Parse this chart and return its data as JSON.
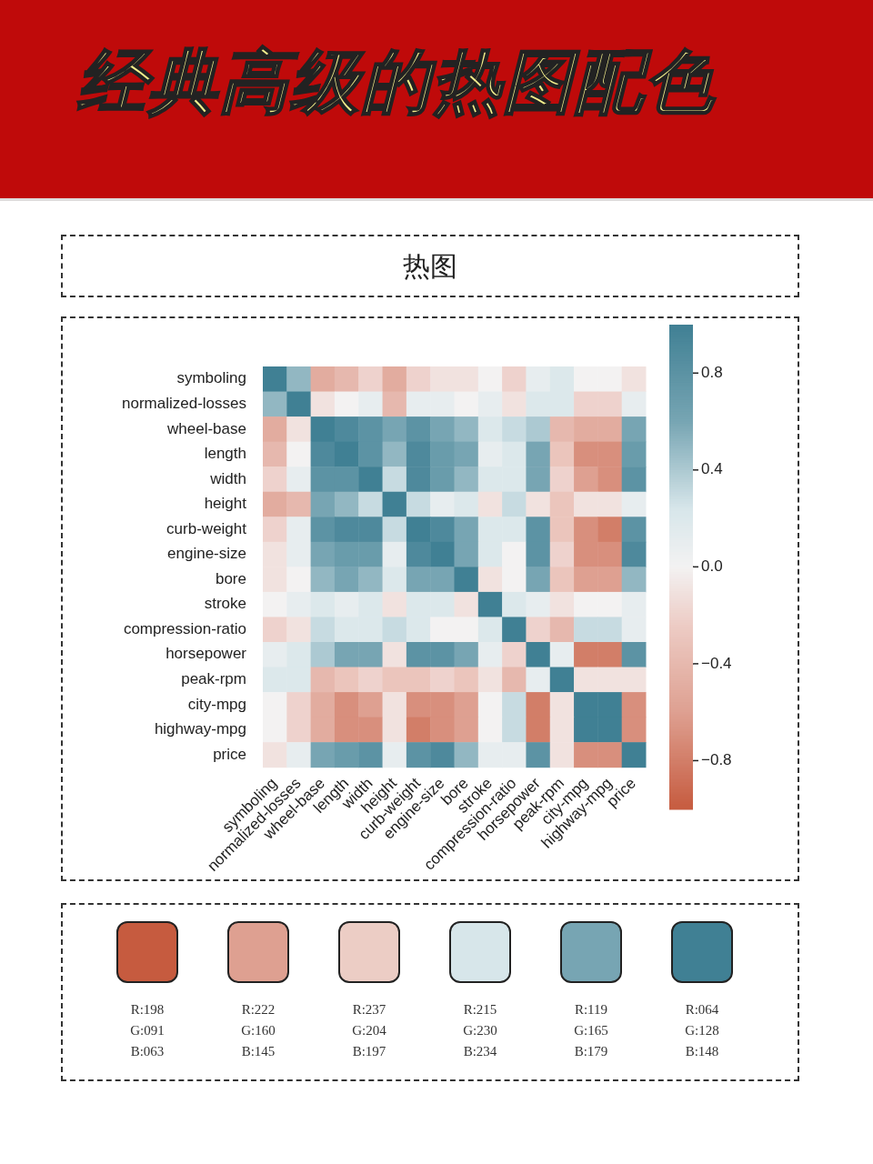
{
  "chart_data": [
    {
      "type": "other",
      "title": "经典高级的热图配色"
    },
    {
      "type": "heatmap",
      "title": "热图",
      "categories": [
        "symboling",
        "normalized-losses",
        "wheel-base",
        "length",
        "width",
        "height",
        "curb-weight",
        "engine-size",
        "bore",
        "stroke",
        "compression-ratio",
        "horsepower",
        "peak-rpm",
        "city-mpg",
        "highway-mpg",
        "price"
      ],
      "y_categories": [
        "symboling",
        "normalized-losses",
        "wheel-base",
        "length",
        "width",
        "height",
        "curb-weight",
        "engine-size",
        "bore",
        "stroke",
        "compression-ratio",
        "horsepower",
        "peak-rpm",
        "city-mpg",
        "highway-mpg",
        "price"
      ],
      "cells": [
        [
          1,
          0.5,
          -0.5,
          -0.4,
          -0.2,
          -0.5,
          -0.2,
          -0.1,
          -0.1,
          0.0,
          -0.2,
          0.1,
          0.2,
          0.0,
          0.0,
          -0.1
        ],
        [
          0.5,
          1,
          -0.1,
          0.0,
          0.1,
          -0.4,
          0.1,
          0.1,
          0.0,
          0.1,
          -0.1,
          0.2,
          0.2,
          -0.2,
          -0.2,
          0.1
        ],
        [
          -0.5,
          -0.1,
          1,
          0.9,
          0.8,
          0.6,
          0.8,
          0.6,
          0.5,
          0.2,
          0.3,
          0.4,
          -0.4,
          -0.5,
          -0.5,
          0.6
        ],
        [
          -0.4,
          0.0,
          0.9,
          1,
          0.8,
          0.5,
          0.9,
          0.7,
          0.6,
          0.1,
          0.2,
          0.6,
          -0.3,
          -0.7,
          -0.7,
          0.7
        ],
        [
          -0.2,
          0.1,
          0.8,
          0.8,
          1,
          0.3,
          0.9,
          0.7,
          0.5,
          0.2,
          0.2,
          0.6,
          -0.2,
          -0.6,
          -0.7,
          0.8
        ],
        [
          -0.5,
          -0.4,
          0.6,
          0.5,
          0.3,
          1,
          0.3,
          0.1,
          0.2,
          -0.1,
          0.3,
          -0.1,
          -0.3,
          -0.1,
          -0.1,
          0.1
        ],
        [
          -0.2,
          0.1,
          0.8,
          0.9,
          0.9,
          0.3,
          1,
          0.9,
          0.6,
          0.2,
          0.2,
          0.8,
          -0.3,
          -0.7,
          -0.8,
          0.8
        ],
        [
          -0.1,
          0.1,
          0.6,
          0.7,
          0.7,
          0.1,
          0.9,
          1,
          0.6,
          0.2,
          0.0,
          0.8,
          -0.2,
          -0.7,
          -0.7,
          0.9
        ],
        [
          -0.1,
          0.0,
          0.5,
          0.6,
          0.5,
          0.2,
          0.6,
          0.6,
          1,
          -0.1,
          0.0,
          0.6,
          -0.3,
          -0.6,
          -0.6,
          0.5
        ],
        [
          0.0,
          0.1,
          0.2,
          0.1,
          0.2,
          -0.1,
          0.2,
          0.2,
          -0.1,
          1,
          0.2,
          0.1,
          -0.1,
          0.0,
          0.0,
          0.1
        ],
        [
          -0.2,
          -0.1,
          0.3,
          0.2,
          0.2,
          0.3,
          0.2,
          0.0,
          0.0,
          0.2,
          1,
          -0.2,
          -0.4,
          0.3,
          0.3,
          0.1
        ],
        [
          0.1,
          0.2,
          0.4,
          0.6,
          0.6,
          -0.1,
          0.8,
          0.8,
          0.6,
          0.1,
          -0.2,
          1,
          0.1,
          -0.8,
          -0.8,
          0.8
        ],
        [
          0.2,
          0.2,
          -0.4,
          -0.3,
          -0.2,
          -0.3,
          -0.3,
          -0.2,
          -0.3,
          -0.1,
          -0.4,
          0.1,
          1,
          -0.1,
          -0.1,
          -0.1
        ],
        [
          0.0,
          -0.2,
          -0.5,
          -0.7,
          -0.6,
          -0.1,
          -0.7,
          -0.7,
          -0.6,
          0.0,
          0.3,
          -0.8,
          -0.1,
          1,
          1.0,
          -0.7
        ],
        [
          0.0,
          -0.2,
          -0.5,
          -0.7,
          -0.7,
          -0.1,
          -0.8,
          -0.7,
          -0.6,
          0.0,
          0.3,
          -0.8,
          -0.1,
          1.0,
          1,
          -0.7
        ],
        [
          -0.1,
          0.1,
          0.6,
          0.7,
          0.8,
          0.1,
          0.8,
          0.9,
          0.5,
          0.1,
          0.1,
          0.8,
          -0.1,
          -0.7,
          -0.7,
          1
        ]
      ],
      "clim": [
        -1,
        1
      ],
      "cticks": [
        0.8,
        0.4,
        {
          "value": 0,
          "label": "0.0"
        },
        {
          "value": -0.4,
          "label": "−0.4"
        },
        {
          "value": -0.8,
          "label": "−0.8"
        }
      ]
    },
    {
      "type": "other",
      "colors": [
        "#c65b3f",
        "#dea091",
        "#eccdc5",
        "#d7e6ea",
        "#77a5b3",
        "#408094"
      ],
      "annotations": [
        "R:198",
        "G:091",
        "B:063",
        "R:222",
        "G:160",
        "B:145",
        "R:237",
        "G:204",
        "B:197",
        "R:215",
        "G:230",
        "B:234",
        "R:119",
        "G:165",
        "B:179",
        "R:064",
        "G:128",
        "B:148"
      ]
    }
  ]
}
